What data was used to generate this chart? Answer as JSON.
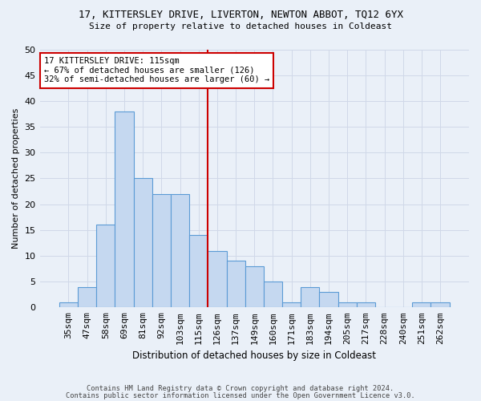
{
  "title1": "17, KITTERSLEY DRIVE, LIVERTON, NEWTON ABBOT, TQ12 6YX",
  "title2": "Size of property relative to detached houses in Coldeast",
  "xlabel": "Distribution of detached houses by size in Coldeast",
  "ylabel": "Number of detached properties",
  "footer1": "Contains HM Land Registry data © Crown copyright and database right 2024.",
  "footer2": "Contains public sector information licensed under the Open Government Licence v3.0.",
  "annotation_title": "17 KITTERSLEY DRIVE: 115sqm",
  "annotation_line1": "← 67% of detached houses are smaller (126)",
  "annotation_line2": "32% of semi-detached houses are larger (60) →",
  "bar_labels": [
    "35sqm",
    "47sqm",
    "58sqm",
    "69sqm",
    "81sqm",
    "92sqm",
    "103sqm",
    "115sqm",
    "126sqm",
    "137sqm",
    "149sqm",
    "160sqm",
    "171sqm",
    "183sqm",
    "194sqm",
    "205sqm",
    "217sqm",
    "228sqm",
    "240sqm",
    "251sqm",
    "262sqm"
  ],
  "bar_values": [
    1,
    4,
    16,
    38,
    25,
    22,
    22,
    14,
    11,
    9,
    8,
    5,
    1,
    4,
    3,
    1,
    1,
    0,
    0,
    1,
    1
  ],
  "bar_color": "#c5d8f0",
  "bar_edge_color": "#5b9bd5",
  "vline_color": "#cc0000",
  "vline_x_index": 7.5,
  "annotation_box_color": "#ffffff",
  "annotation_box_edge_color": "#cc0000",
  "grid_color": "#d0d8e8",
  "bg_color": "#eaf0f8",
  "ylim": [
    0,
    50
  ],
  "yticks": [
    0,
    5,
    10,
    15,
    20,
    25,
    30,
    35,
    40,
    45,
    50
  ]
}
